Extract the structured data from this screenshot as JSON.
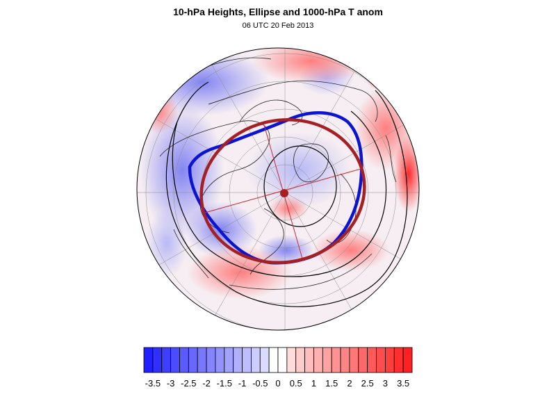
{
  "figure": {
    "title": "10-hPa Heights, Ellipse and 1000-hPa T anom",
    "subtitle": "06 UTC 20 Feb 2013"
  },
  "map": {
    "projection": "polar stereographic (north pole centered)",
    "fields": [
      "10-hPa geopotential height contours",
      "fitted vortex ellipse",
      "1000-hPa temperature anomaly shading"
    ]
  },
  "colors": {
    "vortex_edge": "#0a14d2",
    "ellipse": "#a52024",
    "contour": "#000000",
    "negative_max": "#1a1aff",
    "positive_max": "#ff1a1a"
  },
  "colorbar": {
    "min": -3.75,
    "max": 3.75,
    "step": 0.25,
    "tick_labels": [
      "-3.5",
      "-3",
      "-2.5",
      "-2",
      "-1.5",
      "-1",
      "-0.5",
      "0",
      "0.5",
      "1",
      "1.5",
      "2",
      "2.5",
      "3",
      "3.5"
    ]
  }
}
